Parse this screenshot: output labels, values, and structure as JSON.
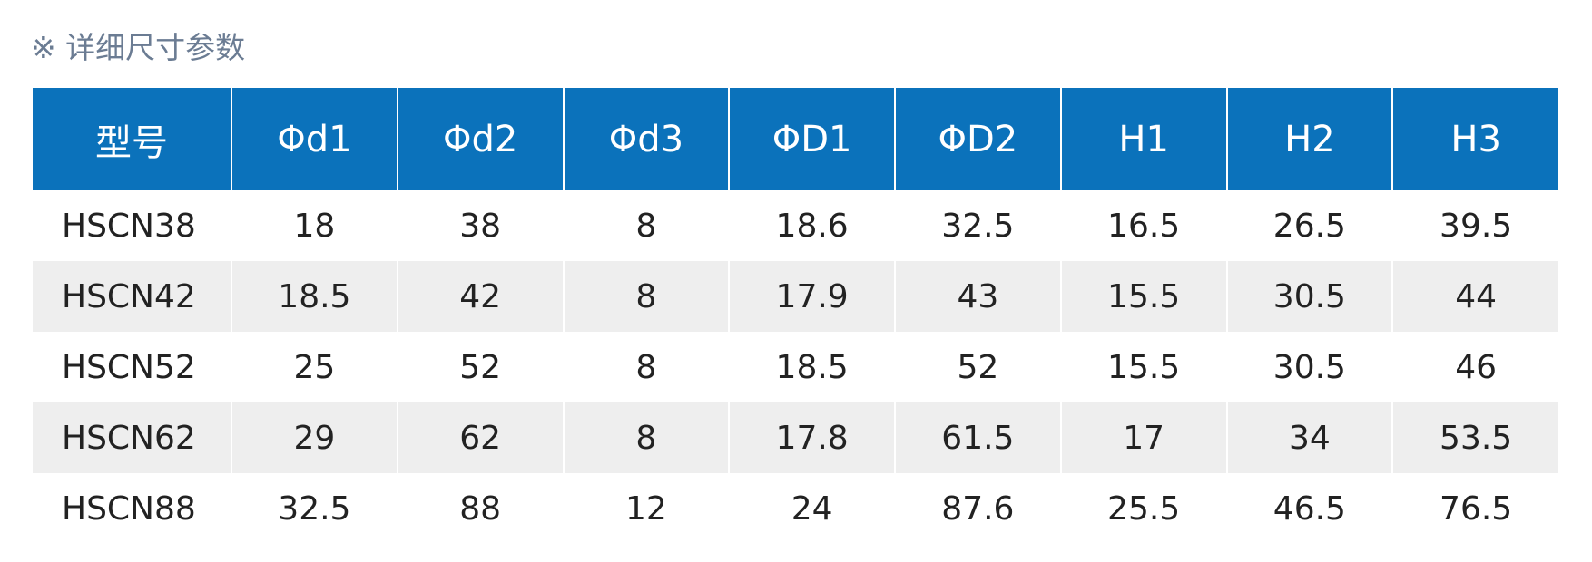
{
  "section": {
    "title": "※ 详细尺寸参数"
  },
  "table": {
    "headers": [
      "型号",
      "Φd1",
      "Φd2",
      "Φd3",
      "ΦD1",
      "ΦD2",
      "H1",
      "H2",
      "H3"
    ],
    "rows": [
      [
        "HSCN38",
        "18",
        "38",
        "8",
        "18.6",
        "32.5",
        "16.5",
        "26.5",
        "39.5"
      ],
      [
        "HSCN42",
        "18.5",
        "42",
        "8",
        "17.9",
        "43",
        "15.5",
        "30.5",
        "44"
      ],
      [
        "HSCN52",
        "25",
        "52",
        "8",
        "18.5",
        "52",
        "15.5",
        "30.5",
        "46"
      ],
      [
        "HSCN62",
        "29",
        "62",
        "8",
        "17.8",
        "61.5",
        "17",
        "34",
        "53.5"
      ],
      [
        "HSCN88",
        "32.5",
        "88",
        "12",
        "24",
        "87.6",
        "25.5",
        "46.5",
        "76.5"
      ]
    ]
  },
  "colors": {
    "header_bg": "#0b72bb",
    "header_text": "#ffffff",
    "stripe_bg": "#eeeeee",
    "title_text": "#6b7c93"
  }
}
